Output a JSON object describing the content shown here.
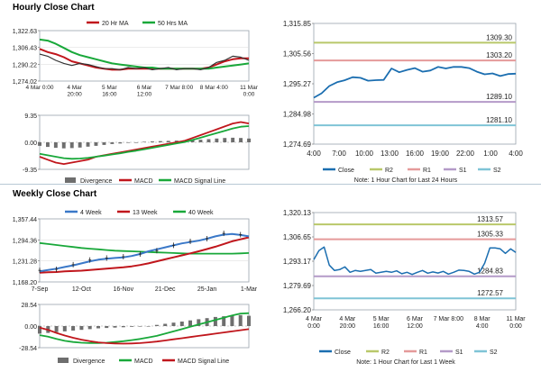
{
  "sections": {
    "hourly_title": "Hourly Close Chart",
    "weekly_title": "Weekly Close Chart"
  },
  "colors": {
    "ma20": "#c0161c",
    "ma50": "#19a83a",
    "close": "#1b6eb0",
    "price": "#333333",
    "r2": "#b9c86a",
    "r1": "#e59a9a",
    "s1": "#b49ac8",
    "s2": "#7fc4d6",
    "week4": "#3a78c8",
    "week13": "#c0161c",
    "week40": "#19a83a",
    "hist": "#6e6e6e",
    "grid": "#d8d8d8"
  },
  "chart_data": [
    {
      "id": "hourly-price",
      "type": "line",
      "ylim": [
        1274.02,
        1322.63
      ],
      "yticks": [
        "1,322.63",
        "1,306.43",
        "1,290.22",
        "1,274.02"
      ],
      "xticks": [
        "4 Mar 0:00",
        "4 Mar\n20:00",
        "5 Mar\n16:00",
        "6 Mar\n12:00",
        "7 Mar 8:00",
        "8 Mar 4:00",
        "11 Mar\n0:00"
      ],
      "legend": [
        "20 Hr MA",
        "50 Hrs MA"
      ],
      "series": [
        {
          "name": "20 Hr MA",
          "color_key": "ma20",
          "values": [
            1305,
            1302,
            1300,
            1297,
            1293,
            1291,
            1289,
            1287,
            1286,
            1285,
            1285,
            1286,
            1286,
            1286,
            1286,
            1286,
            1286,
            1286,
            1286,
            1286,
            1286,
            1287,
            1290,
            1293,
            1295,
            1296,
            1296
          ]
        },
        {
          "name": "50 Hrs MA",
          "color_key": "ma50",
          "values": [
            1314,
            1313,
            1310,
            1306,
            1302,
            1299,
            1297,
            1295,
            1293,
            1291,
            1290,
            1289,
            1288,
            1287,
            1287,
            1286,
            1286,
            1286,
            1286,
            1286,
            1286,
            1286,
            1287,
            1288,
            1289,
            1290,
            1291
          ]
        },
        {
          "name": "Price",
          "color_key": "price",
          "values": [
            1300,
            1298,
            1294,
            1291,
            1289,
            1291,
            1290,
            1288,
            1286,
            1286,
            1285,
            1287,
            1286,
            1287,
            1285,
            1286,
            1287,
            1285,
            1286,
            1286,
            1285,
            1287,
            1292,
            1294,
            1298,
            1297,
            1294
          ]
        }
      ]
    },
    {
      "id": "hourly-macd",
      "type": "line",
      "ylim": [
        -9.35,
        9.35
      ],
      "yticks": [
        "9.35",
        "0.00",
        "-9.35"
      ],
      "legend": [
        "Divergence",
        "MACD",
        "MACD Signal Line"
      ],
      "series": [
        {
          "name": "Divergence",
          "color_key": "hist",
          "values": [
            -1.2,
            -1.6,
            -1.9,
            -2.1,
            -2.0,
            -1.8,
            -1.5,
            -1.2,
            -0.9,
            -0.6,
            -0.4,
            -0.2,
            0.0,
            0.2,
            0.3,
            0.4,
            0.5,
            0.6,
            0.7,
            0.8,
            0.9,
            1.1,
            1.3,
            1.5,
            1.6,
            1.5,
            1.3
          ]
        },
        {
          "name": "MACD",
          "color_key": "ma20",
          "values": [
            -5,
            -6,
            -7,
            -7.5,
            -7,
            -6.5,
            -6,
            -5,
            -4.5,
            -4,
            -3.5,
            -3,
            -2.5,
            -2,
            -1.5,
            -1,
            -0.5,
            0,
            0.5,
            1.5,
            2.5,
            3.5,
            4.5,
            5.5,
            6.5,
            7,
            6.5
          ]
        },
        {
          "name": "MACD Signal Line",
          "color_key": "ma50",
          "values": [
            -4,
            -4.5,
            -5,
            -5.5,
            -5.7,
            -5.6,
            -5.4,
            -5,
            -4.6,
            -4.2,
            -3.8,
            -3.3,
            -2.9,
            -2.4,
            -1.9,
            -1.4,
            -0.9,
            -0.4,
            0.1,
            0.8,
            1.6,
            2.4,
            3.2,
            4,
            4.8,
            5.4,
            5.6
          ]
        }
      ]
    },
    {
      "id": "hourly-close",
      "type": "line",
      "ylim": [
        1274.69,
        1315.85
      ],
      "yticks": [
        "1,315.85",
        "1,305.56",
        "1,295.27",
        "1,284.98",
        "1,274.69"
      ],
      "xticks": [
        "4:00",
        "7:00",
        "10:00",
        "13:00",
        "16:00",
        "19:00",
        "22:00",
        "1:00",
        "4:00"
      ],
      "levels": [
        {
          "name": "R2",
          "value": 1309.3,
          "label": "1309.30",
          "color_key": "r2"
        },
        {
          "name": "R1",
          "value": 1303.2,
          "label": "1303.20",
          "color_key": "r1"
        },
        {
          "name": "S1",
          "value": 1289.1,
          "label": "1289.10",
          "color_key": "s1"
        },
        {
          "name": "S2",
          "value": 1281.1,
          "label": "1281.10",
          "color_key": "s2"
        }
      ],
      "series": [
        {
          "name": "Close",
          "color_key": "close",
          "values": [
            1290.5,
            1292,
            1294.5,
            1295.8,
            1296.5,
            1297.5,
            1297.3,
            1296.3,
            1296.5,
            1296.6,
            1300.5,
            1299.2,
            1300,
            1300.6,
            1299.4,
            1299.8,
            1301,
            1300.5,
            1301,
            1301,
            1300.6,
            1299.4,
            1298.5,
            1298.8,
            1297.9,
            1298.6,
            1298.7
          ]
        }
      ],
      "legend": [
        "Close",
        "R2",
        "R1",
        "S1",
        "S2"
      ],
      "note": "Note: 1 Hour Chart for Last 24 Hours"
    },
    {
      "id": "weekly-price",
      "type": "line",
      "ylim": [
        1168.2,
        1357.44
      ],
      "yticks": [
        "1,357.44",
        "1,294.36",
        "1,231.28",
        "1,168.20"
      ],
      "xticks": [
        "7-Sep",
        "12-Oct",
        "16-Nov",
        "21-Dec",
        "25-Jan",
        "1-Mar"
      ],
      "legend": [
        "4 Week",
        "13 Week",
        "40 Week"
      ],
      "series": [
        {
          "name": "4 Week",
          "color_key": "week4",
          "values": [
            1200,
            1204,
            1208,
            1213,
            1218,
            1224,
            1230,
            1235,
            1238,
            1240,
            1242,
            1246,
            1252,
            1260,
            1266,
            1272,
            1278,
            1284,
            1288,
            1292,
            1298,
            1305,
            1310,
            1312,
            1309,
            1305
          ]
        },
        {
          "name": "13 Week",
          "color_key": "week13",
          "values": [
            1196,
            1197,
            1198,
            1200,
            1201,
            1202,
            1204,
            1206,
            1208,
            1210,
            1212,
            1215,
            1219,
            1224,
            1230,
            1236,
            1242,
            1248,
            1254,
            1260,
            1267,
            1274,
            1282,
            1290,
            1296,
            1302
          ]
        },
        {
          "name": "40 Week",
          "color_key": "week40",
          "values": [
            1285,
            1282,
            1279,
            1276,
            1273,
            1270,
            1268,
            1266,
            1264,
            1262,
            1261,
            1260,
            1259,
            1258,
            1257,
            1256,
            1255,
            1254,
            1253,
            1253,
            1253,
            1253,
            1253,
            1253,
            1254,
            1255
          ]
        },
        {
          "name": "Price",
          "color_key": "price",
          "values": [
            1203,
            1200,
            1206,
            1212,
            1220,
            1228,
            1234,
            1238,
            1240,
            1232,
            1244,
            1248,
            1252,
            1256,
            1262,
            1270,
            1278,
            1286,
            1290,
            1294,
            1298,
            1306,
            1314,
            1320,
            1310,
            1296
          ]
        }
      ]
    },
    {
      "id": "weekly-macd",
      "type": "line",
      "ylim": [
        -28.54,
        28.54
      ],
      "yticks": [
        "28.54",
        "0.00",
        "-28.54"
      ],
      "legend": [
        "Divergence",
        "MACD",
        "MACD Signal Line"
      ],
      "series": [
        {
          "name": "Divergence",
          "color_key": "hist",
          "values": [
            -10,
            -9,
            -8,
            -7,
            -6,
            -5,
            -4,
            -3,
            -2.5,
            -2,
            -1.5,
            -1,
            -0.5,
            0,
            1.5,
            3,
            4.5,
            6,
            7.5,
            9,
            10.5,
            12,
            13,
            14,
            14.5,
            13.5
          ]
        },
        {
          "name": "MACD",
          "color_key": "week40",
          "values": [
            -12,
            -14,
            -17,
            -19.5,
            -21,
            -22,
            -22.5,
            -22.5,
            -22,
            -21,
            -20,
            -18.5,
            -17,
            -15,
            -13,
            -10,
            -7,
            -4,
            -1,
            2,
            5,
            8,
            11,
            14,
            16.5,
            17
          ]
        },
        {
          "name": "MACD Signal Line",
          "color_key": "ma20",
          "values": [
            -2,
            -5,
            -9,
            -12.5,
            -15.5,
            -18,
            -20,
            -21.5,
            -22.5,
            -23,
            -23.2,
            -23,
            -22.5,
            -21.5,
            -20.5,
            -19,
            -17.5,
            -16,
            -14.5,
            -13,
            -11.5,
            -10,
            -8.5,
            -7,
            -5.5,
            -4
          ]
        }
      ]
    },
    {
      "id": "weekly-close",
      "type": "line",
      "ylim": [
        1266.2,
        1320.13
      ],
      "yticks": [
        "1,320.13",
        "1,306.65",
        "1,293.17",
        "1,279.69",
        "1,266.20"
      ],
      "xticks": [
        "4 Mar\n0:00",
        "4 Mar\n20:00",
        "5 Mar\n16:00",
        "6 Mar\n12:00",
        "7 Mar 8:00",
        "8 Mar\n4:00",
        "11 Mar\n0:00"
      ],
      "levels": [
        {
          "name": "R2",
          "value": 1313.57,
          "label": "1313.57",
          "color_key": "r2"
        },
        {
          "name": "R1",
          "value": 1305.33,
          "label": "1305.33",
          "color_key": "r1"
        },
        {
          "name": "S1",
          "value": 1284.83,
          "label": "1284.83",
          "color_key": "s1"
        },
        {
          "name": "S2",
          "value": 1272.57,
          "label": "1272.57",
          "color_key": "s2"
        }
      ],
      "series": [
        {
          "name": "Close",
          "color_key": "close",
          "values": [
            1294,
            1299,
            1301,
            1291,
            1288,
            1288.5,
            1290,
            1287,
            1288,
            1287.5,
            1288,
            1288.5,
            1286.5,
            1287,
            1287.5,
            1287,
            1287.8,
            1286.2,
            1287,
            1285.8,
            1287,
            1288,
            1286.5,
            1287.2,
            1286.6,
            1287.5,
            1286,
            1287,
            1288.2,
            1288,
            1287.5,
            1286,
            1287,
            1292,
            1300.5,
            1300.5,
            1300,
            1297.5,
            1300,
            1298
          ]
        }
      ],
      "legend": [
        "Close",
        "R2",
        "R1",
        "S1",
        "S2"
      ],
      "note": "Note: 1 Hour Chart for Last 1 Week"
    }
  ]
}
